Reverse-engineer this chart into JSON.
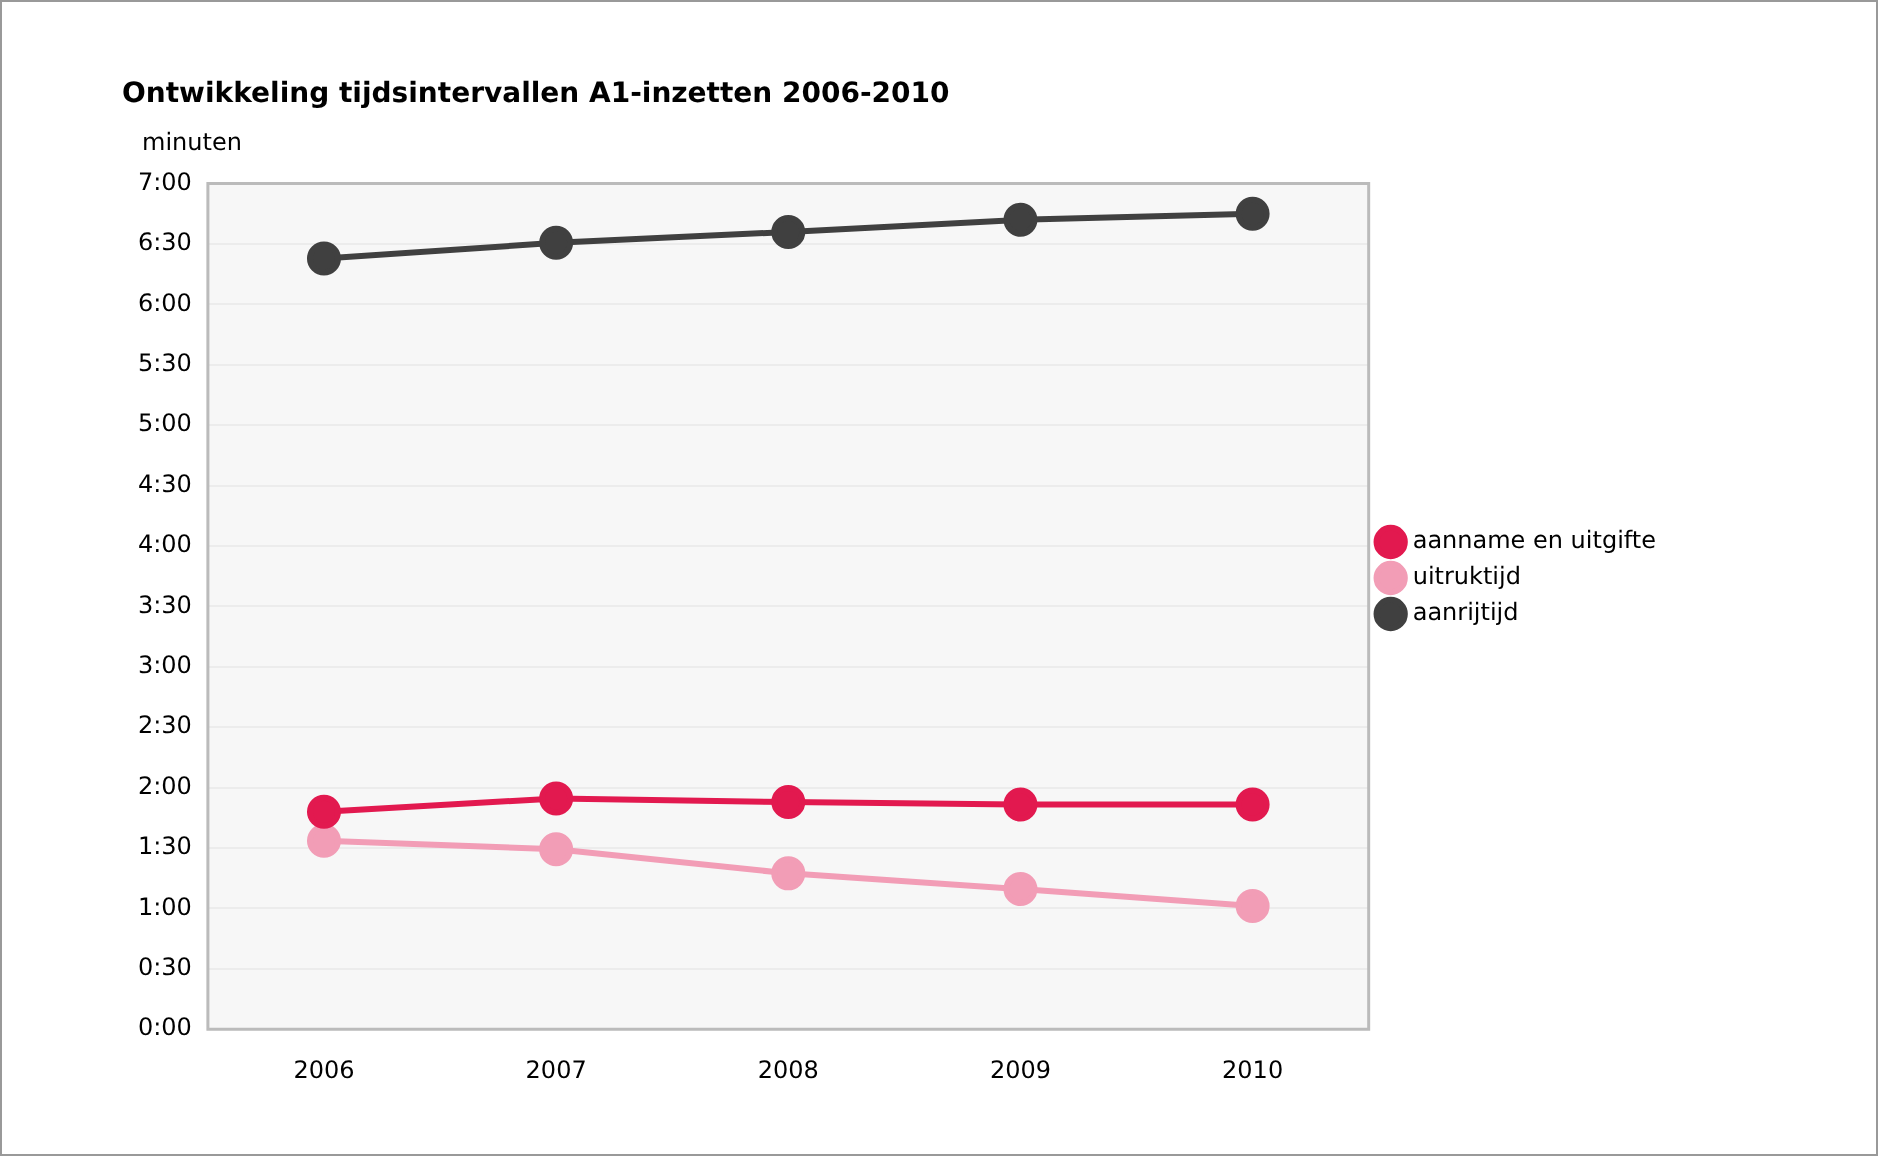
{
  "chart_data": {
    "type": "line",
    "title": "Ontwikkeling tijdsintervallen A1-inzetten 2006-2010",
    "ylabel": "minuten",
    "categories": [
      "2006",
      "2007",
      "2008",
      "2009",
      "2010"
    ],
    "series": [
      {
        "name": "aanname en uitgifte",
        "color": "#e2194f",
        "values": [
          1.8,
          1.91,
          1.88,
          1.86,
          1.86
        ]
      },
      {
        "name": "uitruktijd",
        "color": "#f29db6",
        "values": [
          1.56,
          1.49,
          1.29,
          1.16,
          1.02
        ]
      },
      {
        "name": "aanrijtijd",
        "color": "#404040",
        "values": [
          6.38,
          6.51,
          6.6,
          6.7,
          6.75
        ]
      }
    ],
    "ylim": [
      0,
      7
    ],
    "yticks": [
      {
        "value": 0,
        "label": "0:00"
      },
      {
        "value": 0.5,
        "label": "0:30"
      },
      {
        "value": 1,
        "label": "1:00"
      },
      {
        "value": 1.5,
        "label": "1:30"
      },
      {
        "value": 2,
        "label": "2:00"
      },
      {
        "value": 2.5,
        "label": "2:30"
      },
      {
        "value": 3,
        "label": "3:00"
      },
      {
        "value": 3.5,
        "label": "3:30"
      },
      {
        "value": 4,
        "label": "4:00"
      },
      {
        "value": 4.5,
        "label": "4:30"
      },
      {
        "value": 5,
        "label": "5:00"
      },
      {
        "value": 5.5,
        "label": "5:30"
      },
      {
        "value": 6,
        "label": "6:00"
      },
      {
        "value": 6.5,
        "label": "6:30"
      },
      {
        "value": 7,
        "label": "7:00"
      }
    ],
    "grid": "y",
    "legend": "right",
    "marker": "circle",
    "line_style": "solid"
  }
}
